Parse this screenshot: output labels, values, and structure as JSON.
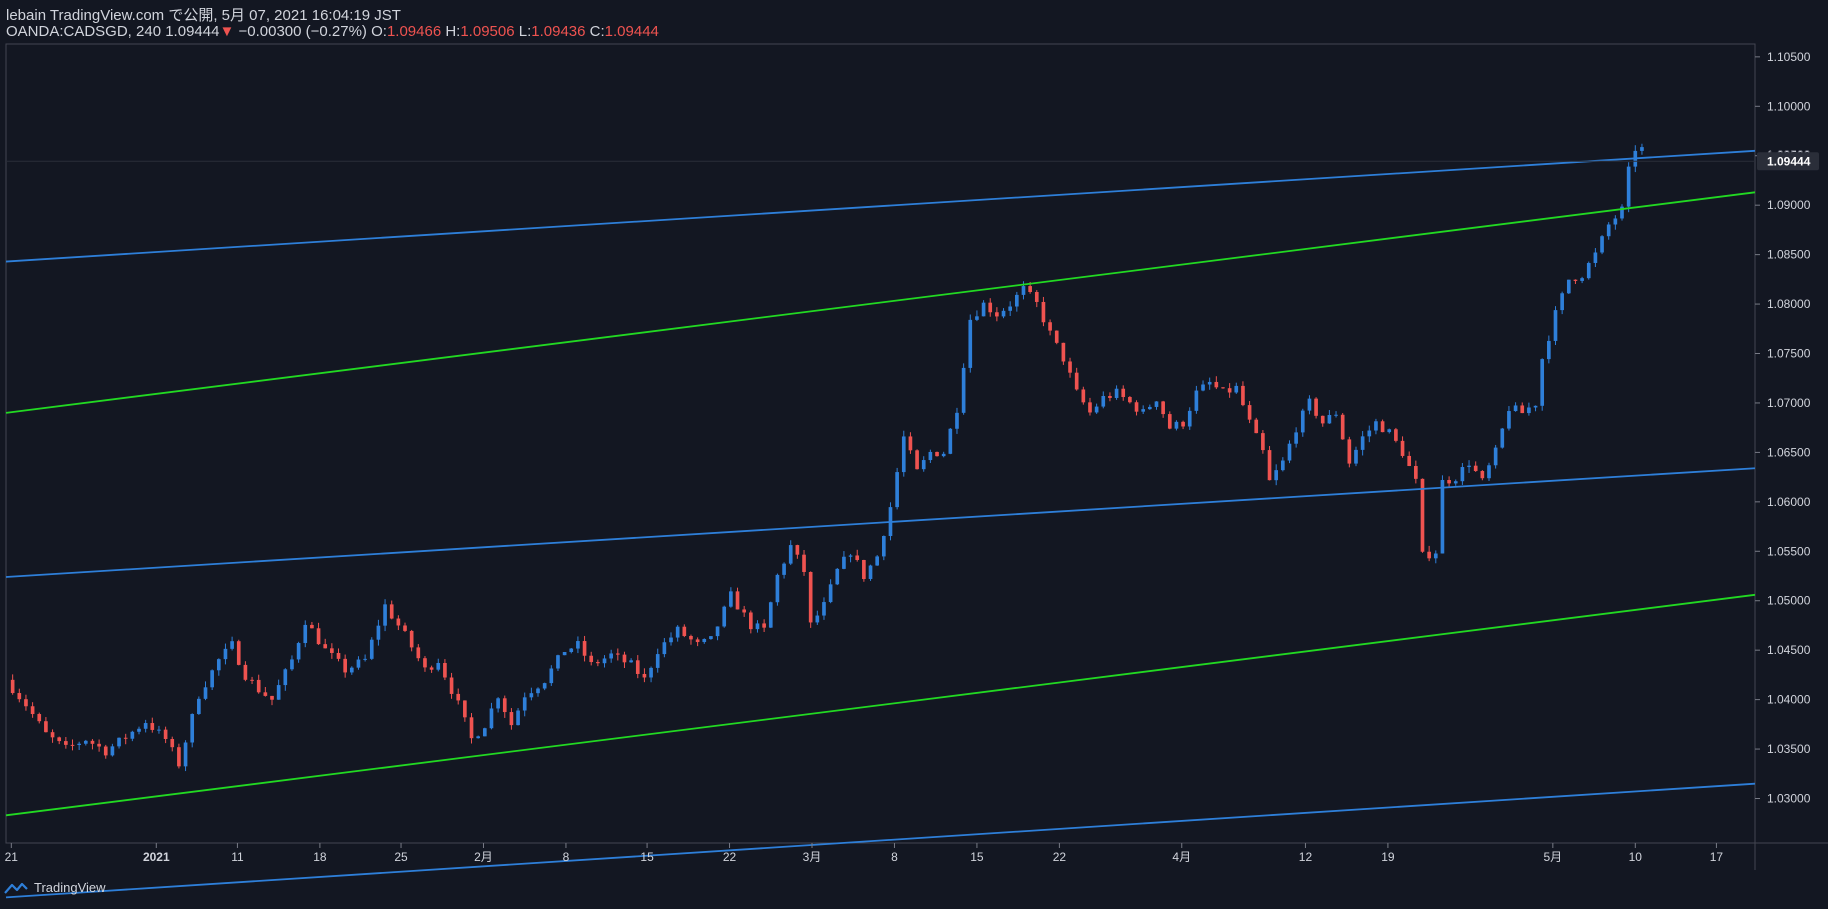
{
  "header": {
    "published": "lebain TradingView.com で公開, 5月 07, 2021 16:04:19 JST",
    "symbol": "OANDA:CADSGD, 240",
    "last": "1.09444",
    "change": "−0.00300 (−0.27%)",
    "o_label": "O:",
    "o": "1.09466",
    "h_label": "H:",
    "h": "1.09506",
    "l_label": "L:",
    "l": "1.09436",
    "c_label": "C:",
    "c": "1.09444"
  },
  "footer": {
    "brand": "TradingView"
  },
  "colors": {
    "background": "#131722",
    "up": "#2e7fd9",
    "down": "#ef5350",
    "channel_blue": "#2e7fd9",
    "channel_green": "#22d922",
    "text": "#d1d4dc"
  },
  "chart_data": {
    "type": "candlestick",
    "symbol": "OANDA:CADSGD",
    "interval": "240",
    "ylim": [
      1.0255,
      1.1063
    ],
    "y_ticks": [
      1.03,
      1.035,
      1.04,
      1.045,
      1.05,
      1.055,
      1.06,
      1.065,
      1.07,
      1.075,
      1.08,
      1.085,
      1.09,
      1.095,
      1.1,
      1.105
    ],
    "y_tick_labels": [
      "1.03000",
      "1.03500",
      "1.04000",
      "1.04500",
      "1.05000",
      "1.05500",
      "1.06000",
      "1.06500",
      "1.07000",
      "1.07500",
      "1.08000",
      "1.08500",
      "1.09000",
      "1.09500",
      "1.10000",
      "1.10500"
    ],
    "x_ticks": [
      {
        "label": "21",
        "t": 0.4
      },
      {
        "label": "2021",
        "t": 11.3
      },
      {
        "label": "11",
        "t": 17.4
      },
      {
        "label": "18",
        "t": 23.6
      },
      {
        "label": "25",
        "t": 29.7
      },
      {
        "label": "2月",
        "t": 35.9
      },
      {
        "label": "8",
        "t": 42.1
      },
      {
        "label": "15",
        "t": 48.2
      },
      {
        "label": "22",
        "t": 54.4
      },
      {
        "label": "3月",
        "t": 60.6
      },
      {
        "label": "8",
        "t": 66.8
      },
      {
        "label": "15",
        "t": 73.0
      },
      {
        "label": "22",
        "t": 79.2
      },
      {
        "label": "4月",
        "t": 88.4
      },
      {
        "label": "12",
        "t": 97.7
      },
      {
        "label": "19",
        "t": 103.9
      },
      {
        "label": "5月",
        "t": 116.3
      },
      {
        "label": "10",
        "t": 122.5
      },
      {
        "label": "17",
        "t": 128.6
      }
    ],
    "x_range": [
      0,
      131.5
    ],
    "price_path": [
      [
        0,
        1.042
      ],
      [
        1.5,
        1.0395
      ],
      [
        3,
        1.0365
      ],
      [
        4.5,
        1.035
      ],
      [
        6,
        1.036
      ],
      [
        7.5,
        1.0348
      ],
      [
        9,
        1.0362
      ],
      [
        10.5,
        1.0378
      ],
      [
        12,
        1.036
      ],
      [
        13,
        1.0335
      ],
      [
        14.5,
        1.0405
      ],
      [
        16,
        1.044
      ],
      [
        17,
        1.0455
      ],
      [
        18,
        1.0425
      ],
      [
        19,
        1.041
      ],
      [
        20,
        1.04
      ],
      [
        21.5,
        1.044
      ],
      [
        22.5,
        1.048
      ],
      [
        24,
        1.045
      ],
      [
        25.5,
        1.043
      ],
      [
        27,
        1.044
      ],
      [
        28.5,
        1.0495
      ],
      [
        30,
        1.0465
      ],
      [
        31.5,
        1.043
      ],
      [
        32.5,
        1.044
      ],
      [
        34,
        1.0395
      ],
      [
        35,
        1.036
      ],
      [
        36,
        1.0375
      ],
      [
        37,
        1.0405
      ],
      [
        38,
        1.0375
      ],
      [
        39,
        1.0405
      ],
      [
        40.5,
        1.042
      ],
      [
        42,
        1.045
      ],
      [
        43,
        1.0455
      ],
      [
        44,
        1.0435
      ],
      [
        45.5,
        1.0445
      ],
      [
        47,
        1.0435
      ],
      [
        48,
        1.042
      ],
      [
        49,
        1.045
      ],
      [
        50.5,
        1.047
      ],
      [
        52,
        1.0455
      ],
      [
        53,
        1.046
      ],
      [
        54.5,
        1.0505
      ],
      [
        56,
        1.0475
      ],
      [
        57,
        1.047
      ],
      [
        58,
        1.0525
      ],
      [
        59,
        1.0555
      ],
      [
        60,
        1.053
      ],
      [
        60.5,
        1.0475
      ],
      [
        61.5,
        1.0495
      ],
      [
        62.5,
        1.053
      ],
      [
        63.5,
        1.055
      ],
      [
        64.5,
        1.0525
      ],
      [
        65.5,
        1.0545
      ],
      [
        66,
        1.057
      ],
      [
        66.5,
        1.0595
      ],
      [
        67.5,
        1.0665
      ],
      [
        68.5,
        1.063
      ],
      [
        69.5,
        1.065
      ],
      [
        70.5,
        1.065
      ],
      [
        71.5,
        1.0695
      ],
      [
        72.5,
        1.0785
      ],
      [
        73.5,
        1.08
      ],
      [
        74.5,
        1.079
      ],
      [
        75.5,
        1.08
      ],
      [
        76.5,
        1.0815
      ],
      [
        77.5,
        1.08
      ],
      [
        78.5,
        1.077
      ],
      [
        79.5,
        1.0745
      ],
      [
        80.5,
        1.071
      ],
      [
        81.5,
        1.069
      ],
      [
        82.5,
        1.0705
      ],
      [
        83.5,
        1.071
      ],
      [
        84.5,
        1.07
      ],
      [
        85.5,
        1.069
      ],
      [
        86.5,
        1.0705
      ],
      [
        87.5,
        1.0675
      ],
      [
        88.5,
        1.068
      ],
      [
        89.5,
        1.071
      ],
      [
        90.5,
        1.072
      ],
      [
        91.5,
        1.071
      ],
      [
        92.5,
        1.0715
      ],
      [
        93.5,
        1.068
      ],
      [
        94.5,
        1.065
      ],
      [
        95,
        1.062
      ],
      [
        96,
        1.064
      ],
      [
        97,
        1.0675
      ],
      [
        98,
        1.07
      ],
      [
        99,
        1.068
      ],
      [
        100,
        1.069
      ],
      [
        101,
        1.064
      ],
      [
        102,
        1.0665
      ],
      [
        103,
        1.068
      ],
      [
        104,
        1.067
      ],
      [
        105,
        1.065
      ],
      [
        106,
        1.062
      ],
      [
        106.5,
        1.0545
      ],
      [
        107.5,
        1.055
      ],
      [
        108,
        1.062
      ],
      [
        109,
        1.0625
      ],
      [
        110,
        1.064
      ],
      [
        111,
        1.062
      ],
      [
        112,
        1.065
      ],
      [
        113,
        1.0695
      ],
      [
        114,
        1.069
      ],
      [
        115,
        1.07
      ],
      [
        115.5,
        1.0745
      ],
      [
        116.5,
        1.079
      ],
      [
        117.5,
        1.0825
      ],
      [
        118.5,
        1.083
      ],
      [
        119.5,
        1.085
      ],
      [
        120.5,
        1.088
      ],
      [
        121.5,
        1.0895
      ],
      [
        122.2,
        1.095
      ],
      [
        122.8,
        1.0965
      ],
      [
        123.3,
        1.0944
      ]
    ],
    "channel_lines": [
      {
        "color": "blue",
        "t0": 0,
        "p0": 1.0843,
        "t1": 131.5,
        "p1": 1.0955
      },
      {
        "color": "green",
        "t0": 0,
        "p0": 1.069,
        "t1": 131.5,
        "p1": 1.0913
      },
      {
        "color": "blue",
        "t0": 0,
        "p0": 1.0524,
        "t1": 131.5,
        "p1": 1.0634
      },
      {
        "color": "green",
        "t0": 0,
        "p0": 1.0283,
        "t1": 131.5,
        "p1": 1.0506
      },
      {
        "color": "blue",
        "t0": 0,
        "p0": 1.02,
        "t1": 131.5,
        "p1": 1.0315
      }
    ],
    "last_price": 1.09444,
    "last_price_label": "1.09444",
    "hidden_label": "1.09500"
  }
}
